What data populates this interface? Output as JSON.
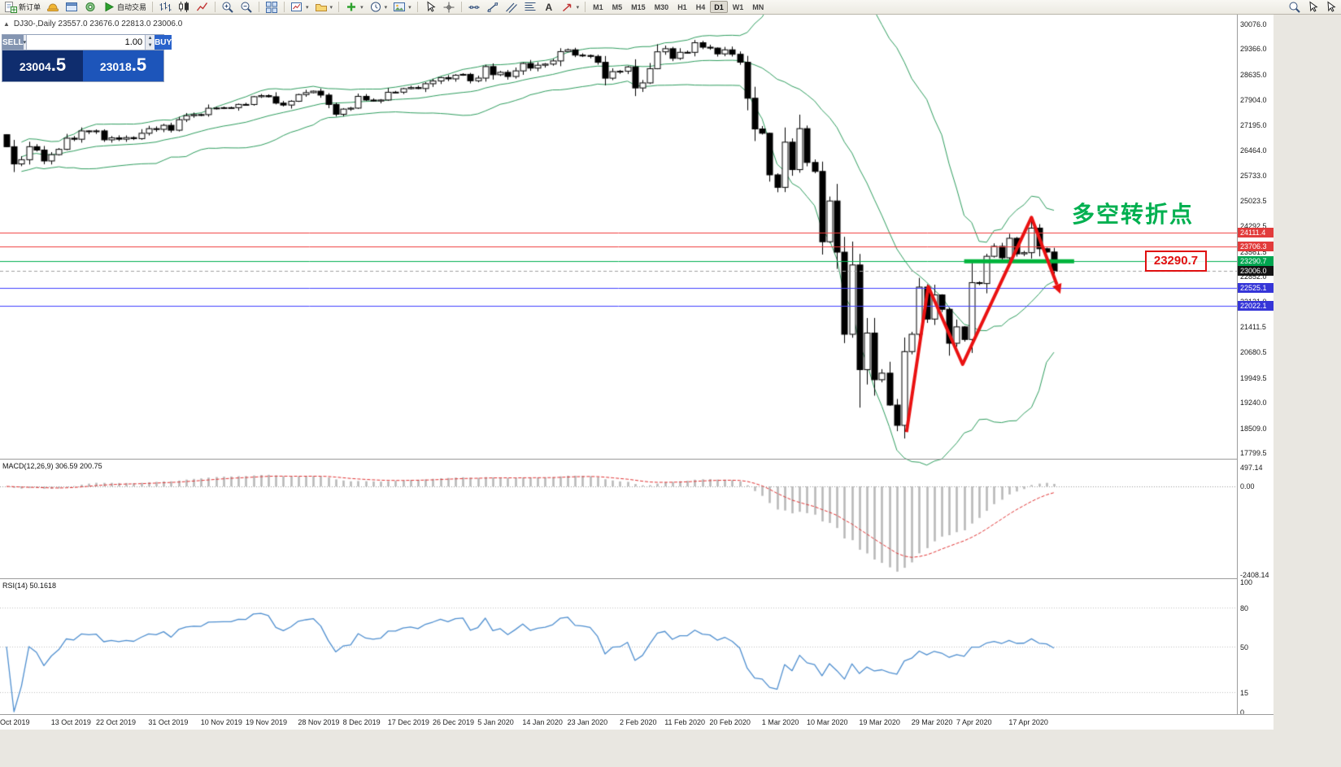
{
  "toolbar": {
    "groups": [
      {
        "items": [
          {
            "name": "new-order-button",
            "icon": "new-order",
            "label": "新订单"
          },
          {
            "name": "metaeditor-button",
            "icon": "hat"
          },
          {
            "name": "chart-window-button",
            "icon": "window"
          },
          {
            "name": "navigator-button",
            "icon": "circle"
          },
          {
            "name": "autotrading-button",
            "icon": "play",
            "label": "自动交易"
          }
        ]
      },
      {
        "items": [
          {
            "name": "bar-chart-button",
            "icon": "bars"
          },
          {
            "name": "candle-chart-button",
            "icon": "candles"
          },
          {
            "name": "line-chart-button",
            "icon": "linechart"
          }
        ]
      },
      {
        "items": [
          {
            "name": "zoom-in-button",
            "icon": "zoom-in"
          },
          {
            "name": "zoom-out-button",
            "icon": "zoom-out"
          }
        ]
      },
      {
        "items": [
          {
            "name": "tile-windows-button",
            "icon": "grid"
          }
        ]
      },
      {
        "items": [
          {
            "name": "new-chart-button",
            "icon": "newchart",
            "caret": true
          },
          {
            "name": "profiles-button",
            "icon": "profiles",
            "caret": true
          }
        ]
      },
      {
        "items": [
          {
            "name": "indicators-button",
            "icon": "plus",
            "caret": true
          },
          {
            "name": "periods-button",
            "icon": "clock",
            "caret": true
          },
          {
            "name": "templates-button",
            "icon": "image",
            "caret": true
          }
        ]
      },
      {
        "items": [
          {
            "name": "cursor-button",
            "icon": "cursor"
          },
          {
            "name": "crosshair-button",
            "icon": "crosshair"
          }
        ]
      },
      {
        "items": [
          {
            "name": "hline-button",
            "icon": "hline"
          },
          {
            "name": "trendline-button",
            "icon": "trendline"
          },
          {
            "name": "channel-button",
            "icon": "channel"
          },
          {
            "name": "fibonacci-button",
            "icon": "fibo"
          },
          {
            "name": "text-button",
            "icon": "textA"
          },
          {
            "name": "arrows-button",
            "icon": "arrowtool",
            "caret": true
          }
        ]
      }
    ],
    "timeframes": [
      "M1",
      "M5",
      "M15",
      "M30",
      "H1",
      "H4",
      "D1",
      "W1",
      "MN"
    ],
    "active_timeframe": "D1",
    "right_items": [
      {
        "name": "search-button",
        "icon": "magnifier"
      },
      {
        "name": "pointer-button",
        "icon": "cursor"
      },
      {
        "name": "drag-button",
        "icon": "cursor"
      }
    ]
  },
  "chart": {
    "symbol": "DJ30-",
    "period": "Daily",
    "info_line": "DJ30-,Daily  23557.0 23676.0 22813.0 23006.0"
  },
  "one_click": {
    "sell_label": "SELL",
    "buy_label": "BUY",
    "volume": "1.00",
    "sell_price_main": "23004",
    "sell_price_pips": ".5",
    "buy_price_main": "23018",
    "buy_price_pips": ".5"
  },
  "indicators": {
    "macd_label": "MACD(12,26,9) 306.59 200.75",
    "rsi_label": "RSI(14) 50.1618"
  },
  "annotations": {
    "turning_point_text": "多空转折点",
    "level_label": "23290.7",
    "green_segment": {
      "price": 23290.7,
      "i_from": 128,
      "i_to": 142.7,
      "color": "#00b43c"
    },
    "zigzag_color": "#ea1212",
    "zigzag": [
      {
        "i": 120.3,
        "p": 18400
      },
      {
        "i": 123.2,
        "p": 22570
      },
      {
        "i": 127.8,
        "p": 20340
      },
      {
        "i": 137.0,
        "p": 24550
      },
      {
        "i": 140.4,
        "p": 22620
      }
    ]
  },
  "price_axis": {
    "labels": [
      {
        "text": "30076.0",
        "price": 30076.0
      },
      {
        "text": "29366.0",
        "price": 29366.0
      },
      {
        "text": "28635.0",
        "price": 28635.0
      },
      {
        "text": "27904.0",
        "price": 27904.0
      },
      {
        "text": "27195.0",
        "price": 27195.0
      },
      {
        "text": "26464.0",
        "price": 26464.0
      },
      {
        "text": "25733.0",
        "price": 25733.0
      },
      {
        "text": "25023.5",
        "price": 25023.5
      },
      {
        "text": "24292.5",
        "price": 24292.5
      },
      {
        "text": "23561.5",
        "price": 23561.5
      },
      {
        "text": "22852.0",
        "price": 22852.0
      },
      {
        "text": "22121.0",
        "price": 22121.0
      },
      {
        "text": "21411.5",
        "price": 21411.5
      },
      {
        "text": "20680.5",
        "price": 20680.5
      },
      {
        "text": "19949.5",
        "price": 19949.5
      },
      {
        "text": "19240.0",
        "price": 19240.0
      },
      {
        "text": "18509.0",
        "price": 18509.0
      },
      {
        "text": "17799.5",
        "price": 17799.5
      }
    ],
    "tags": [
      {
        "text": "24111.4",
        "price": 24111.4,
        "color": "#e23b3b"
      },
      {
        "text": "23706.3",
        "price": 23706.3,
        "color": "#e23b3b"
      },
      {
        "text": "23290.7",
        "price": 23290.7,
        "color": "#00a550"
      },
      {
        "text": "23006.0",
        "price": 23006.0,
        "color": "#141414"
      },
      {
        "text": "22525.1",
        "price": 22525.1,
        "color": "#3535d8"
      },
      {
        "text": "22022.1",
        "price": 22022.1,
        "color": "#3535d8"
      }
    ]
  },
  "levels": [
    {
      "price": 24111.4,
      "color": "#f13a3a",
      "style": "solid"
    },
    {
      "price": 23706.3,
      "color": "#f13a3a",
      "style": "solid"
    },
    {
      "price": 23290.7,
      "color": "#00b050",
      "style": "solid"
    },
    {
      "price": 23006.0,
      "color": "#a0a0a0",
      "style": "dash"
    },
    {
      "price": 22525.1,
      "color": "#4040ff",
      "style": "solid"
    },
    {
      "price": 22022.1,
      "color": "#4040ff",
      "style": "solid"
    }
  ],
  "macd_axis": [
    {
      "text": "497.14",
      "v": 497.14
    },
    {
      "text": "0.00",
      "v": 0
    },
    {
      "text": "-2408.14",
      "v": -2408.14
    }
  ],
  "rsi_axis": [
    {
      "text": "100",
      "v": 100
    },
    {
      "text": "80",
      "v": 80
    },
    {
      "text": "50",
      "v": 50
    },
    {
      "text": "15",
      "v": 15
    },
    {
      "text": "0",
      "v": 0
    }
  ],
  "rsi_levels": [
    80,
    50,
    15
  ],
  "date_axis": [
    {
      "label": "Oct 2019",
      "i": 2
    },
    {
      "label": "13 Oct 2019",
      "i": 9
    },
    {
      "label": "22 Oct 2019",
      "i": 15
    },
    {
      "label": "31 Oct 2019",
      "i": 22
    },
    {
      "label": "10 Nov 2019",
      "i": 29
    },
    {
      "label": "19 Nov 2019",
      "i": 35
    },
    {
      "label": "28 Nov 2019",
      "i": 42
    },
    {
      "label": "8 Dec 2019",
      "i": 48
    },
    {
      "label": "17 Dec 2019",
      "i": 54
    },
    {
      "label": "26 Dec 2019",
      "i": 60
    },
    {
      "label": "5 Jan 2020",
      "i": 66
    },
    {
      "label": "14 Jan 2020",
      "i": 72
    },
    {
      "label": "23 Jan 2020",
      "i": 78
    },
    {
      "label": "2 Feb 2020",
      "i": 85
    },
    {
      "label": "11 Feb 2020",
      "i": 91
    },
    {
      "label": "20 Feb 2020",
      "i": 97
    },
    {
      "label": "1 Mar 2020",
      "i": 104
    },
    {
      "label": "10 Mar 2020",
      "i": 110
    },
    {
      "label": "19 Mar 2020",
      "i": 117
    },
    {
      "label": "29 Mar 2020",
      "i": 124
    },
    {
      "label": "7 Apr 2020",
      "i": 130
    },
    {
      "label": "17 Apr 2020",
      "i": 137
    }
  ],
  "chart_data": {
    "type": "candlestick",
    "symbol": "DJ30-",
    "timeframe": "Daily",
    "ohlc_current": {
      "open": 23557.0,
      "high": 23676.0,
      "low": 22813.0,
      "close": 23006.0
    },
    "overlay": "Bollinger Bands(20,2)",
    "y_axis_visible_range": [
      17650,
      30250
    ],
    "closes": [
      26573,
      26079,
      26201,
      26574,
      26478,
      26164,
      26346,
      26497,
      26817,
      26787,
      27025,
      27002,
      27026,
      26770,
      26828,
      26788,
      26834,
      26805,
      26958,
      27090,
      27071,
      27186,
      27046,
      27347,
      27462,
      27493,
      27492,
      27675,
      27681,
      27691,
      27692,
      27784,
      27782,
      28005,
      28036,
      28004,
      27821,
      27766,
      27875,
      28066,
      28121,
      28164,
      28051,
      27783,
      27502,
      27650,
      27678,
      28015,
      27910,
      27882,
      27911,
      28132,
      28135,
      28235,
      28267,
      28239,
      28377,
      28455,
      28552,
      28516,
      28621,
      28645,
      28462,
      28538,
      28868,
      28635,
      28703,
      28584,
      28745,
      28957,
      28824,
      28907,
      28939,
      29030,
      29297,
      29348,
      29196,
      29186,
      29160,
      28990,
      28536,
      28723,
      28734,
      28859,
      28256,
      28400,
      28808,
      29291,
      29380,
      29103,
      29277,
      29276,
      29551,
      29423,
      29398,
      29232,
      29348,
      29220,
      28992,
      27961,
      27081,
      26958,
      25767,
      25409,
      26703,
      25917,
      27091,
      26121,
      25865,
      23851,
      25018,
      23553,
      21201,
      23186,
      20189,
      21237,
      19899,
      20087,
      19174,
      18592,
      20705,
      21201,
      22552,
      21637,
      22327,
      21917,
      20944,
      21413,
      21053,
      22680,
      22654,
      23434,
      23719,
      23391,
      23950,
      23505,
      23538,
      24242,
      23651,
      23557,
      23006
    ],
    "sub_indicators": [
      {
        "name": "MACD",
        "params": "12,26,9",
        "current_values": [
          306.59,
          200.75
        ],
        "axis_range": [
          -2408.14,
          497.14
        ]
      },
      {
        "name": "RSI",
        "params": "14",
        "current_value": 50.1618,
        "levels": [
          80,
          50,
          15
        ]
      }
    ]
  }
}
